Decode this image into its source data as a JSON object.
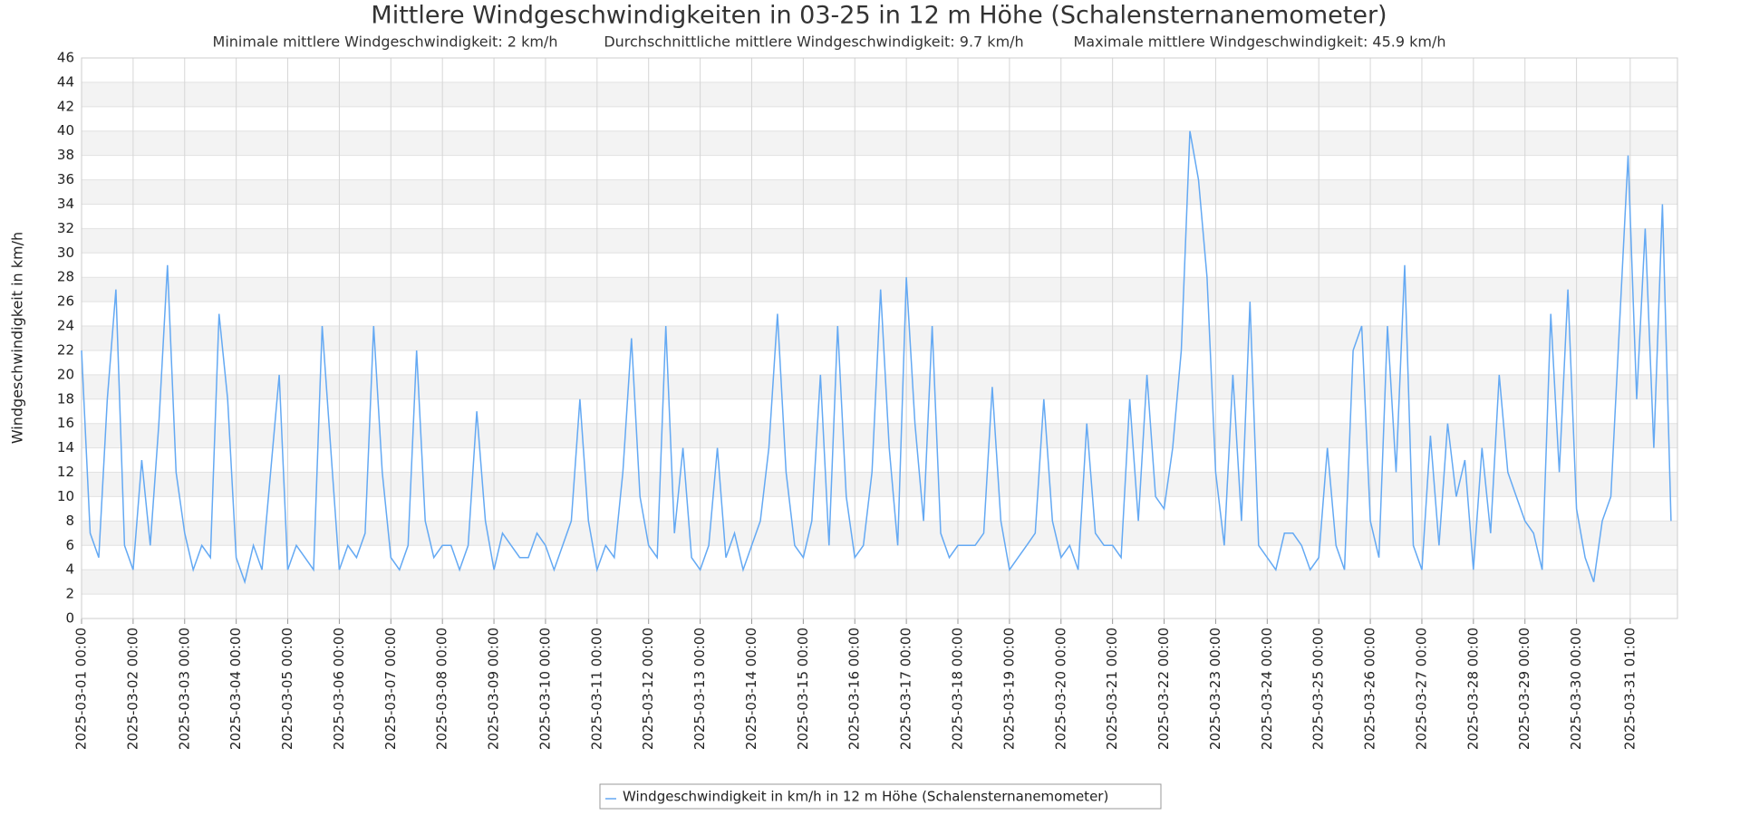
{
  "chart_data": {
    "type": "line",
    "title": "Mittlere Windgeschwindigkeiten in 03-25 in 12 m Höhe (Schalensternanemometer)",
    "subtitles": [
      "Minimale mittlere Windgeschwindigkeit: 2 km/h",
      "Durchschnittliche mittlere Windgeschwindigkeit: 9.7 km/h",
      "Maximale mittlere Windgeschwindigkeit: 45.9 km/h"
    ],
    "y_label": "Windgeschwindigkeit in km/h",
    "x": [
      "2025-03-01 00:00",
      "2025-03-01 04:00",
      "2025-03-01 08:00",
      "2025-03-01 12:00",
      "2025-03-01 16:00",
      "2025-03-01 20:00",
      "2025-03-02 00:00",
      "2025-03-02 04:00",
      "2025-03-02 08:00",
      "2025-03-02 12:00",
      "2025-03-02 16:00",
      "2025-03-02 20:00",
      "2025-03-03 00:00",
      "2025-03-03 04:00",
      "2025-03-03 08:00",
      "2025-03-03 12:00",
      "2025-03-03 16:00",
      "2025-03-03 20:00",
      "2025-03-04 00:00",
      "2025-03-04 04:00",
      "2025-03-04 08:00",
      "2025-03-04 12:00",
      "2025-03-04 16:00",
      "2025-03-04 20:00",
      "2025-03-05 00:00",
      "2025-03-05 04:00",
      "2025-03-05 08:00",
      "2025-03-05 12:00",
      "2025-03-05 16:00",
      "2025-03-05 20:00",
      "2025-03-06 00:00",
      "2025-03-06 04:00",
      "2025-03-06 08:00",
      "2025-03-06 12:00",
      "2025-03-06 16:00",
      "2025-03-06 20:00",
      "2025-03-07 00:00",
      "2025-03-07 04:00",
      "2025-03-07 08:00",
      "2025-03-07 12:00",
      "2025-03-07 16:00",
      "2025-03-07 20:00",
      "2025-03-08 00:00",
      "2025-03-08 04:00",
      "2025-03-08 08:00",
      "2025-03-08 12:00",
      "2025-03-08 16:00",
      "2025-03-08 20:00",
      "2025-03-09 00:00",
      "2025-03-09 04:00",
      "2025-03-09 08:00",
      "2025-03-09 12:00",
      "2025-03-09 16:00",
      "2025-03-09 20:00",
      "2025-03-10 00:00",
      "2025-03-10 04:00",
      "2025-03-10 08:00",
      "2025-03-10 12:00",
      "2025-03-10 16:00",
      "2025-03-10 20:00",
      "2025-03-11 00:00",
      "2025-03-11 04:00",
      "2025-03-11 08:00",
      "2025-03-11 12:00",
      "2025-03-11 16:00",
      "2025-03-11 20:00",
      "2025-03-12 00:00",
      "2025-03-12 04:00",
      "2025-03-12 08:00",
      "2025-03-12 12:00",
      "2025-03-12 16:00",
      "2025-03-12 20:00",
      "2025-03-13 00:00",
      "2025-03-13 04:00",
      "2025-03-13 08:00",
      "2025-03-13 12:00",
      "2025-03-13 16:00",
      "2025-03-13 20:00",
      "2025-03-14 00:00",
      "2025-03-14 04:00",
      "2025-03-14 08:00",
      "2025-03-14 12:00",
      "2025-03-14 16:00",
      "2025-03-14 20:00",
      "2025-03-15 00:00",
      "2025-03-15 04:00",
      "2025-03-15 08:00",
      "2025-03-15 12:00",
      "2025-03-15 16:00",
      "2025-03-15 20:00",
      "2025-03-16 00:00",
      "2025-03-16 04:00",
      "2025-03-16 08:00",
      "2025-03-16 12:00",
      "2025-03-16 16:00",
      "2025-03-16 20:00",
      "2025-03-17 00:00",
      "2025-03-17 04:00",
      "2025-03-17 08:00",
      "2025-03-17 12:00",
      "2025-03-17 16:00",
      "2025-03-17 20:00",
      "2025-03-18 00:00",
      "2025-03-18 04:00",
      "2025-03-18 08:00",
      "2025-03-18 12:00",
      "2025-03-18 16:00",
      "2025-03-18 20:00",
      "2025-03-19 00:00",
      "2025-03-19 04:00",
      "2025-03-19 08:00",
      "2025-03-19 12:00",
      "2025-03-19 16:00",
      "2025-03-19 20:00",
      "2025-03-20 00:00",
      "2025-03-20 04:00",
      "2025-03-20 08:00",
      "2025-03-20 12:00",
      "2025-03-20 16:00",
      "2025-03-20 20:00",
      "2025-03-21 00:00",
      "2025-03-21 04:00",
      "2025-03-21 08:00",
      "2025-03-21 12:00",
      "2025-03-21 16:00",
      "2025-03-21 20:00",
      "2025-03-22 00:00",
      "2025-03-22 04:00",
      "2025-03-22 08:00",
      "2025-03-22 12:00",
      "2025-03-22 16:00",
      "2025-03-22 20:00",
      "2025-03-23 00:00",
      "2025-03-23 04:00",
      "2025-03-23 08:00",
      "2025-03-23 12:00",
      "2025-03-23 16:00",
      "2025-03-23 20:00",
      "2025-03-24 00:00",
      "2025-03-24 04:00",
      "2025-03-24 08:00",
      "2025-03-24 12:00",
      "2025-03-24 16:00",
      "2025-03-24 20:00",
      "2025-03-25 00:00",
      "2025-03-25 04:00",
      "2025-03-25 08:00",
      "2025-03-25 12:00",
      "2025-03-25 16:00",
      "2025-03-25 20:00",
      "2025-03-26 00:00",
      "2025-03-26 04:00",
      "2025-03-26 08:00",
      "2025-03-26 12:00",
      "2025-03-26 16:00",
      "2025-03-26 20:00",
      "2025-03-27 00:00",
      "2025-03-27 04:00",
      "2025-03-27 08:00",
      "2025-03-27 12:00",
      "2025-03-27 16:00",
      "2025-03-27 20:00",
      "2025-03-28 00:00",
      "2025-03-28 04:00",
      "2025-03-28 08:00",
      "2025-03-28 12:00",
      "2025-03-28 16:00",
      "2025-03-28 20:00",
      "2025-03-29 00:00",
      "2025-03-29 04:00",
      "2025-03-29 08:00",
      "2025-03-29 12:00",
      "2025-03-29 16:00",
      "2025-03-29 20:00",
      "2025-03-30 00:00",
      "2025-03-30 04:00",
      "2025-03-30 08:00",
      "2025-03-30 12:00",
      "2025-03-30 16:00",
      "2025-03-30 20:00",
      "2025-03-31 00:00",
      "2025-03-31 04:00",
      "2025-03-31 08:00",
      "2025-03-31 12:00",
      "2025-03-31 16:00",
      "2025-03-31 20:00"
    ],
    "series": [
      {
        "name": "Windgeschwindigkeit in km/h in 12 m Höhe (Schalensternanemometer)",
        "color": "#64a9f3",
        "values": [
          22,
          7,
          5,
          18,
          27,
          6,
          4,
          13,
          6,
          16,
          29,
          12,
          7,
          4,
          6,
          5,
          25,
          18,
          5,
          3,
          6,
          4,
          12,
          20,
          4,
          6,
          5,
          4,
          24,
          14,
          4,
          6,
          5,
          7,
          24,
          12,
          5,
          4,
          6,
          22,
          8,
          5,
          6,
          6,
          4,
          6,
          17,
          8,
          4,
          7,
          6,
          5,
          5,
          7,
          6,
          4,
          6,
          8,
          18,
          8,
          4,
          6,
          5,
          12,
          23,
          10,
          6,
          5,
          24,
          7,
          14,
          5,
          4,
          6,
          14,
          5,
          7,
          4,
          6,
          8,
          14,
          25,
          12,
          6,
          5,
          8,
          20,
          6,
          24,
          10,
          5,
          6,
          12,
          27,
          14,
          6,
          28,
          16,
          8,
          24,
          7,
          5,
          6,
          6,
          6,
          7,
          19,
          8,
          4,
          5,
          6,
          7,
          18,
          8,
          5,
          6,
          4,
          16,
          7,
          6,
          6,
          5,
          18,
          8,
          20,
          10,
          9,
          14,
          22,
          40,
          36,
          28,
          12,
          6,
          20,
          8,
          26,
          6,
          5,
          4,
          7,
          7,
          6,
          4,
          5,
          14,
          6,
          4,
          22,
          24,
          8,
          5,
          24,
          12,
          29,
          6,
          4,
          15,
          6,
          16,
          10,
          13,
          4,
          14,
          7,
          20,
          12,
          10,
          8,
          7,
          4,
          25,
          12,
          27,
          9,
          5,
          3,
          8,
          10,
          24,
          38,
          18,
          32,
          14,
          34,
          8
        ]
      }
    ],
    "xlim": [
      "2025-03-01 00:00",
      "2025-03-31 23:00"
    ],
    "xticks": [
      "2025-03-01 00:00",
      "2025-03-02 00:00",
      "2025-03-03 00:00",
      "2025-03-04 00:00",
      "2025-03-05 00:00",
      "2025-03-06 00:00",
      "2025-03-07 00:00",
      "2025-03-08 00:00",
      "2025-03-09 00:00",
      "2025-03-10 00:00",
      "2025-03-11 00:00",
      "2025-03-12 00:00",
      "2025-03-13 00:00",
      "2025-03-14 00:00",
      "2025-03-15 00:00",
      "2025-03-16 00:00",
      "2025-03-17 00:00",
      "2025-03-18 00:00",
      "2025-03-19 00:00",
      "2025-03-20 00:00",
      "2025-03-21 00:00",
      "2025-03-22 00:00",
      "2025-03-23 00:00",
      "2025-03-24 00:00",
      "2025-03-25 00:00",
      "2025-03-26 00:00",
      "2025-03-27 00:00",
      "2025-03-28 00:00",
      "2025-03-29 00:00",
      "2025-03-30 00:00",
      "2025-03-31 01:00"
    ],
    "ylim": [
      0,
      46
    ],
    "yticks": [
      0,
      2,
      4,
      6,
      8,
      10,
      12,
      14,
      16,
      18,
      20,
      22,
      24,
      26,
      28,
      30,
      32,
      34,
      36,
      38,
      40,
      42,
      44,
      46
    ],
    "grid": true
  }
}
